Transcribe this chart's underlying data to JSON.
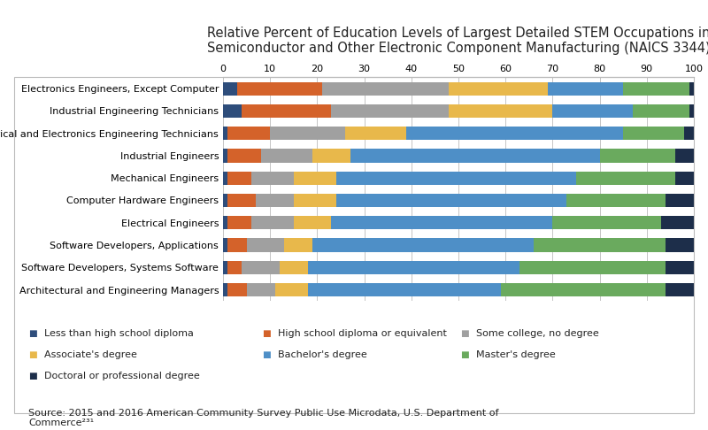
{
  "title": "Relative Percent of Education Levels of Largest Detailed STEM Occupations in\nSemiconductor and Other Electronic Component Manufacturing (NAICS 3344)",
  "categories": [
    "Electronics Engineers, Except Computer",
    "Industrial Engineering Technicians",
    "Electrical and Electronics Engineering Technicians",
    "Industrial Engineers",
    "Mechanical Engineers",
    "Computer Hardware Engineers",
    "Electrical Engineers",
    "Software Developers, Applications",
    "Software Developers, Systems Software",
    "Architectural and Engineering Managers"
  ],
  "legend_labels": [
    "Less than high school diploma",
    "High school diploma or equivalent",
    "Some college, no degree",
    "Associate's degree",
    "Bachelor's degree",
    "Master's degree",
    "Doctoral or professional degree"
  ],
  "colors": [
    "#2e4d7b",
    "#d4622a",
    "#a0a0a0",
    "#e8b84b",
    "#4e8fc7",
    "#6aaa5e",
    "#1d2e4a"
  ],
  "data": [
    [
      3,
      18,
      27,
      21,
      16,
      14,
      1
    ],
    [
      4,
      19,
      25,
      22,
      17,
      12,
      1
    ],
    [
      1,
      9,
      16,
      13,
      46,
      13,
      2
    ],
    [
      1,
      7,
      11,
      8,
      53,
      16,
      4
    ],
    [
      1,
      5,
      9,
      9,
      51,
      21,
      4
    ],
    [
      1,
      6,
      8,
      9,
      49,
      21,
      6
    ],
    [
      1,
      5,
      9,
      8,
      47,
      23,
      7
    ],
    [
      1,
      4,
      8,
      6,
      47,
      28,
      6
    ],
    [
      1,
      3,
      8,
      6,
      45,
      31,
      6
    ],
    [
      1,
      4,
      6,
      7,
      41,
      35,
      6
    ]
  ],
  "xlim": [
    0,
    100
  ],
  "xticks": [
    0,
    10,
    20,
    30,
    40,
    50,
    60,
    70,
    80,
    90,
    100
  ],
  "source_text": "Source: 2015 and 2016 American Community Survey Public Use Microdata, U.S. Department of\nCommerce²³¹",
  "background_color": "#ffffff",
  "plot_bg_color": "#ffffff",
  "title_fontsize": 10.5,
  "label_fontsize": 8,
  "tick_fontsize": 8,
  "legend_fontsize": 8,
  "source_fontsize": 8
}
